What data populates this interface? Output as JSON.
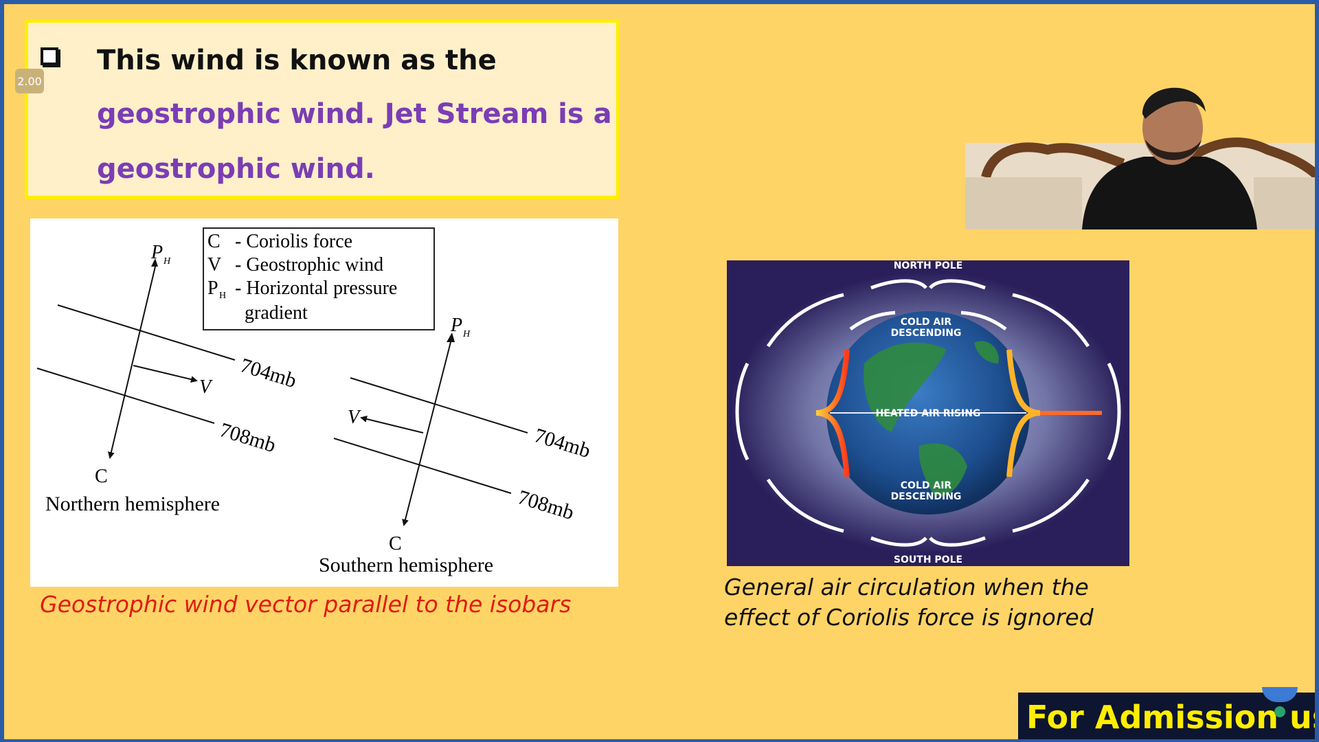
{
  "player": {
    "speed_badge": "2.00"
  },
  "slide": {
    "bullet_line1": "This wind is known as the",
    "bullet_line2": "geostrophic wind. Jet Stream is a",
    "bullet_line3": "geostrophic wind.",
    "colors": {
      "heading": "#111111",
      "highlight": "#7b3db5",
      "background": "#ffd466",
      "caption_left": "#e01a12"
    }
  },
  "diagram": {
    "legend": [
      {
        "symbol": "C",
        "text": "- Coriolis force"
      },
      {
        "symbol": "V",
        "text": "- Geostrophic wind"
      },
      {
        "symbol": "P",
        "sub": "H",
        "text": "- Horizontal pressure"
      },
      {
        "symbol": "",
        "text": "gradient"
      }
    ],
    "north": {
      "ph": "P",
      "ph_sub": "H",
      "v": "V",
      "c": "C",
      "iso1": "704mb",
      "iso2": "708mb",
      "label": "Northern hemisphere"
    },
    "south": {
      "ph": "P",
      "ph_sub": "H",
      "v": "V",
      "c": "C",
      "iso1": "704mb",
      "iso2": "708mb",
      "label": "Southern hemisphere"
    },
    "caption": "Geostrophic wind vector parallel to the isobars"
  },
  "globe": {
    "north_pole": "NORTH POLE",
    "south_pole": "SOUTH POLE",
    "cold_air_top_1": "COLD AIR",
    "cold_air_top_2": "DESCENDING",
    "heated": "HEATED AIR RISING",
    "cold_air_bottom_1": "COLD AIR",
    "cold_air_bottom_2": "DESCENDING",
    "caption_line1": "General air circulation when the",
    "caption_line2": "effect of Coriolis force is ignored"
  },
  "banner": {
    "text": "For Admission use"
  }
}
